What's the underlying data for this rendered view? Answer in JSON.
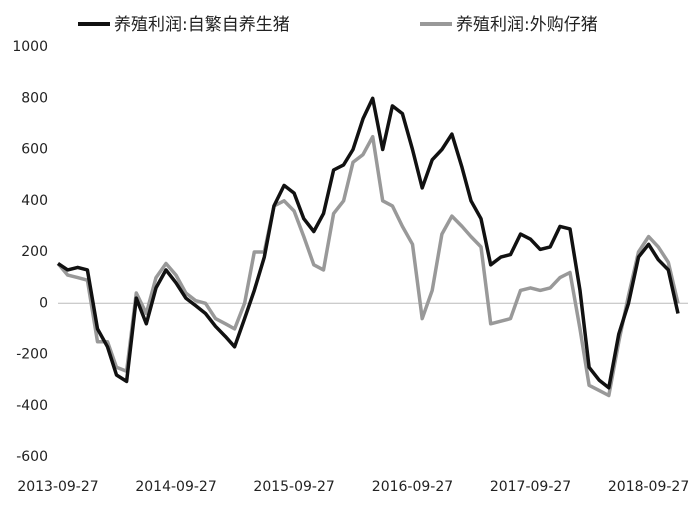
{
  "chart_data": {
    "type": "line",
    "x": [
      "2013-09-27",
      "2013-10-27",
      "2013-11-27",
      "2013-12-27",
      "2014-01-27",
      "2014-02-27",
      "2014-03-27",
      "2014-04-27",
      "2014-05-27",
      "2014-06-27",
      "2014-07-27",
      "2014-08-27",
      "2014-09-27",
      "2014-10-27",
      "2014-11-27",
      "2014-12-27",
      "2015-01-27",
      "2015-02-27",
      "2015-03-27",
      "2015-04-27",
      "2015-05-27",
      "2015-06-27",
      "2015-07-27",
      "2015-08-27",
      "2015-09-27",
      "2015-10-27",
      "2015-11-27",
      "2015-12-27",
      "2016-01-27",
      "2016-02-27",
      "2016-03-27",
      "2016-04-27",
      "2016-05-27",
      "2016-06-27",
      "2016-07-27",
      "2016-08-27",
      "2016-09-27",
      "2016-10-27",
      "2016-11-27",
      "2016-12-27",
      "2017-01-27",
      "2017-02-27",
      "2017-03-27",
      "2017-04-27",
      "2017-05-27",
      "2017-06-27",
      "2017-07-27",
      "2017-08-27",
      "2017-09-27",
      "2017-10-27",
      "2017-11-27",
      "2017-12-27",
      "2018-01-27",
      "2018-02-27",
      "2018-03-27",
      "2018-04-27",
      "2018-05-27",
      "2018-06-27",
      "2018-07-27",
      "2018-08-27",
      "2018-09-27",
      "2018-10-27",
      "2018-11-27",
      "2018-12-27"
    ],
    "series": [
      {
        "name": "养殖利润:自繁自养生猪",
        "color": "#111111",
        "values": [
          155,
          130,
          140,
          130,
          -100,
          -170,
          -280,
          -305,
          20,
          -80,
          60,
          130,
          80,
          20,
          -10,
          -40,
          -90,
          -130,
          -170,
          -60,
          50,
          180,
          380,
          460,
          430,
          330,
          280,
          350,
          520,
          540,
          600,
          720,
          800,
          600,
          770,
          740,
          600,
          450,
          560,
          600,
          660,
          530,
          400,
          330,
          150,
          180,
          190,
          270,
          250,
          210,
          220,
          300,
          290,
          50,
          -250,
          -300,
          -330,
          -120,
          0,
          180,
          230,
          170,
          130,
          -40
        ]
      },
      {
        "name": "养殖利润:外购仔猪",
        "color": "#999999",
        "values": [
          155,
          110,
          100,
          90,
          -150,
          -150,
          -250,
          -265,
          40,
          -40,
          100,
          155,
          110,
          40,
          10,
          0,
          -60,
          -80,
          -100,
          0,
          200,
          200,
          380,
          400,
          360,
          260,
          150,
          130,
          350,
          400,
          550,
          580,
          650,
          400,
          380,
          300,
          230,
          -60,
          50,
          270,
          340,
          300,
          260,
          220,
          -80,
          -70,
          -60,
          50,
          60,
          50,
          60,
          100,
          120,
          -100,
          -320,
          -340,
          -360,
          -150,
          30,
          200,
          260,
          220,
          160,
          0
        ]
      }
    ],
    "xlim": [
      "2013-09-27",
      "2018-12-27"
    ],
    "xticks": [
      "2013-09-27",
      "2014-09-27",
      "2015-09-27",
      "2016-09-27",
      "2017-09-27",
      "2018-09-27"
    ],
    "ylim": [
      -600,
      1000
    ],
    "yticks": [
      -600,
      -400,
      -200,
      0,
      200,
      400,
      600,
      800,
      1000
    ],
    "zero_line": true
  }
}
